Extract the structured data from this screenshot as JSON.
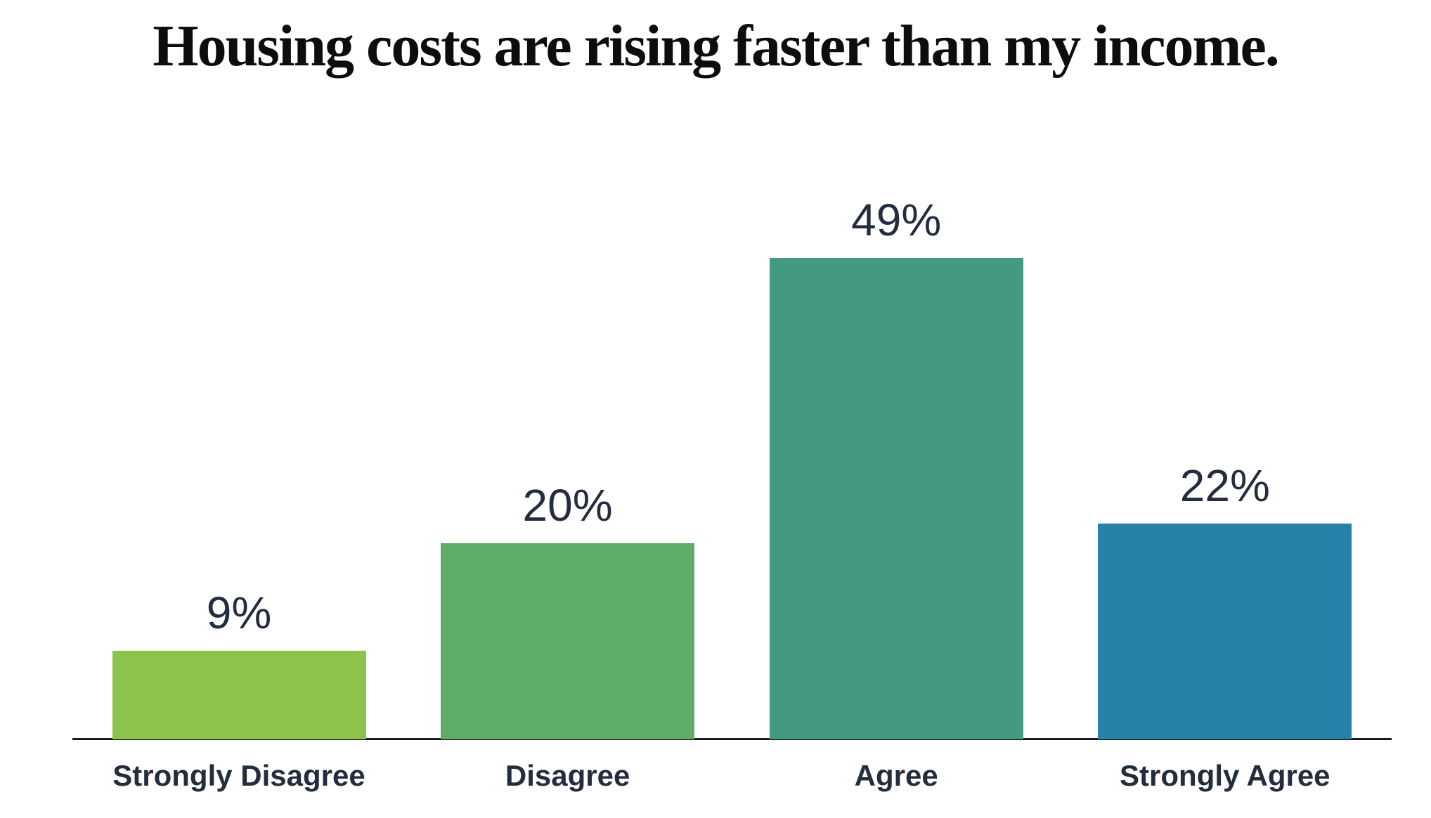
{
  "page": {
    "background": "#ffffff"
  },
  "chart_data": {
    "type": "bar",
    "title": "Housing costs are rising faster than my income.",
    "categories": [
      "Strongly Disagree",
      "Disagree",
      "Agree",
      "Strongly Agree"
    ],
    "values": [
      9,
      20,
      49,
      22
    ],
    "value_labels": [
      "9%",
      "20%",
      "49%",
      "22%"
    ],
    "series_unit": "percent",
    "colors": [
      "#8CC44B",
      "#5FAC68",
      "#449A80",
      "#2682A9"
    ],
    "title_color": "#0D0D0D",
    "label_color": "#232D3F",
    "axis_color": "#1B1B1B",
    "xlabel": "",
    "ylabel": "",
    "ylim": [
      0,
      53
    ],
    "grid": false,
    "legend_position": "none",
    "y_axis_visible": false,
    "data_labels": "above-bars"
  }
}
